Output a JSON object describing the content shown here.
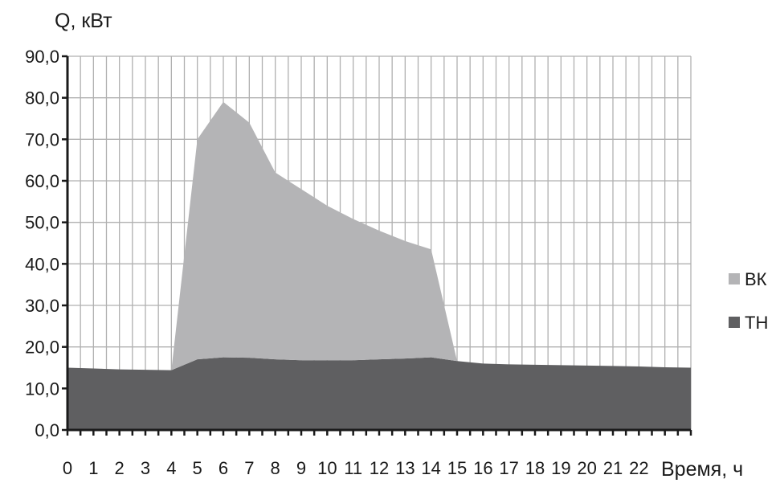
{
  "chart_data": {
    "type": "area",
    "stacked": true,
    "ylabel": "Q, кВт",
    "xlabel": "Время, ч",
    "ylim": [
      0,
      90
    ],
    "xlim": [
      0,
      24
    ],
    "grid": true,
    "legend_position": "right",
    "y_ticks": [
      "0,0",
      "10,0",
      "20,0",
      "30,0",
      "40,0",
      "50,0",
      "60,0",
      "70,0",
      "80,0",
      "90,0"
    ],
    "x_ticks": [
      "0",
      "1",
      "2",
      "3",
      "4",
      "5",
      "6",
      "7",
      "8",
      "9",
      "10",
      "11",
      "12",
      "13",
      "14",
      "15",
      "16",
      "17",
      "18",
      "19",
      "20",
      "21",
      "22"
    ],
    "x": [
      0,
      1,
      2,
      3,
      4,
      5,
      6,
      7,
      8,
      9,
      10,
      11,
      12,
      13,
      14,
      15,
      16,
      17,
      18,
      19,
      20,
      21,
      22,
      23,
      24
    ],
    "series": [
      {
        "name": "ТН",
        "color": "#5f5f61",
        "values": [
          15.0,
          14.8,
          14.6,
          14.5,
          14.4,
          17.0,
          17.5,
          17.4,
          17.0,
          16.8,
          16.8,
          16.8,
          17.0,
          17.2,
          17.5,
          16.6,
          16.0,
          15.8,
          15.7,
          15.6,
          15.5,
          15.4,
          15.3,
          15.1,
          15.0
        ]
      },
      {
        "name": "ВК",
        "color": "#b4b4b6",
        "values": [
          0,
          0,
          0,
          0,
          0,
          53.0,
          61.5,
          56.6,
          45.0,
          41.2,
          37.2,
          34.0,
          31.0,
          28.3,
          26.0,
          0,
          0,
          0,
          0,
          0,
          0,
          0,
          0,
          0,
          0
        ]
      }
    ]
  }
}
